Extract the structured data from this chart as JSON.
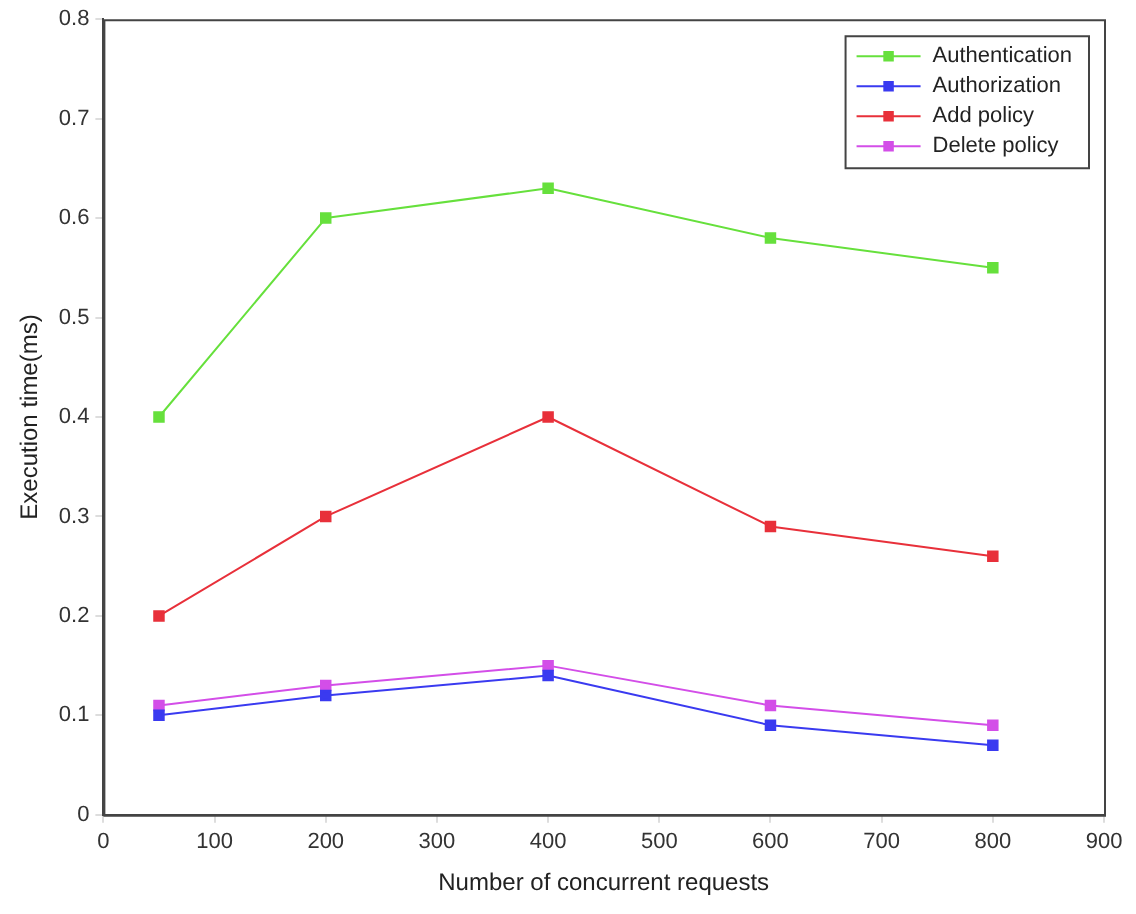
{
  "chart_data": {
    "type": "line",
    "xlabel": "Number of concurrent requests",
    "ylabel": "Execution time(ms)",
    "x": [
      50,
      200,
      400,
      600,
      800
    ],
    "series": [
      {
        "name": "Authentication",
        "color": "#66e03c",
        "values": [
          0.4,
          0.6,
          0.63,
          0.58,
          0.55
        ]
      },
      {
        "name": "Authorization",
        "color": "#3a3af0",
        "values": [
          0.1,
          0.12,
          0.14,
          0.09,
          0.07
        ]
      },
      {
        "name": "Add policy",
        "color": "#e8303a",
        "values": [
          0.2,
          0.3,
          0.4,
          0.29,
          0.26
        ]
      },
      {
        "name": "Delete policy",
        "color": "#d34ee8",
        "values": [
          0.11,
          0.13,
          0.15,
          0.11,
          0.09
        ]
      }
    ],
    "xlim": [
      0,
      900
    ],
    "xticks": [
      0,
      100,
      200,
      300,
      400,
      500,
      600,
      700,
      800,
      900
    ],
    "ylim": [
      0,
      0.8
    ],
    "yticks": [
      0,
      0.1,
      0.2,
      0.3,
      0.4,
      0.5,
      0.6,
      0.7,
      0.8
    ],
    "grid": false,
    "legend": "top right",
    "marker": "square",
    "line_style": "solid"
  }
}
